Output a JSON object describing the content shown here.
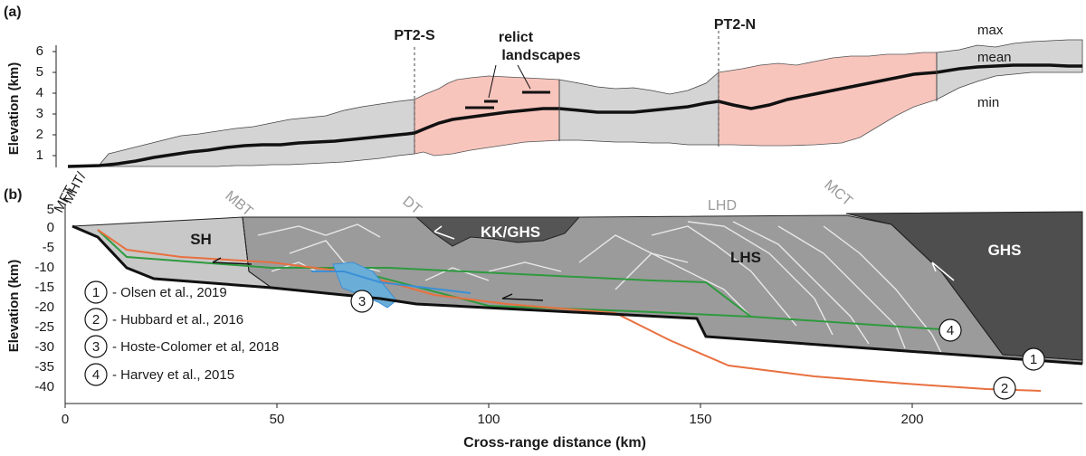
{
  "panel_a": {
    "label": "(a)",
    "ylabel": "Elevation (km)",
    "yticks": [
      "1",
      "2",
      "3",
      "4",
      "5",
      "6"
    ],
    "profile_labels": [
      "PT2-S",
      "PT2-N"
    ],
    "relict_label_1": "relict",
    "relict_label_2": "landscapes",
    "legend": [
      "max",
      "mean",
      "min"
    ]
  },
  "panel_b": {
    "label": "(b)",
    "ylabel": "Elevation (km)",
    "xlabel": "Cross-range distance (km)",
    "yticks": [
      "5",
      "0",
      "-5",
      "-10",
      "-15",
      "-20",
      "-25",
      "-30",
      "-35",
      "-40"
    ],
    "xticks": [
      "0",
      "50",
      "100",
      "150",
      "200"
    ],
    "fault_labels": [
      "MHT/",
      "MFT",
      "MBT",
      "DT",
      "LHD",
      "MCT"
    ],
    "unit_labels": [
      "SH",
      "KK/GHS",
      "LHS",
      "GHS"
    ],
    "model_markers": [
      "1",
      "2",
      "3",
      "4"
    ],
    "references": [
      {
        "num": "1",
        "text": "- Olsen et al., 2019"
      },
      {
        "num": "2",
        "text": "- Hubbard et al., 2016"
      },
      {
        "num": "3",
        "text": "- Hoste-Colomer et al, 2018"
      },
      {
        "num": "4",
        "text": "- Harvey et al., 2015"
      }
    ]
  },
  "colors": {
    "relict_fill": "#f8c5bd",
    "swath_fill": "#d4d4d4",
    "sh_fill": "#c8c8c8",
    "lhs_fill": "#9b9b9b",
    "ghs_fill": "#4e4e4e",
    "olsen": "#1a1a1a",
    "hubbard": "#e8703f",
    "hoste": "#3b8fd6",
    "harvey": "#2e9a3e"
  },
  "chart_data": [
    {
      "type": "area",
      "panel": "(a)",
      "xlabel": "",
      "ylabel": "Elevation (km)",
      "ylim": [
        0,
        6.5
      ],
      "xlim": [
        0,
        240
      ],
      "series": [
        {
          "name": "max",
          "x": [
            0,
            10,
            20,
            30,
            40,
            50,
            60,
            70,
            80,
            83,
            90,
            100,
            110,
            117,
            125,
            140,
            150,
            155,
            165,
            180,
            195,
            205,
            215,
            225,
            240
          ],
          "values": [
            0.3,
            0.6,
            1.4,
            1.8,
            2.2,
            2.7,
            3.1,
            3.4,
            3.6,
            3.9,
            4.6,
            5.2,
            5.0,
            4.2,
            3.9,
            4.0,
            4.5,
            5.5,
            5.7,
            6.0,
            6.3,
            6.4,
            6.6,
            6.7,
            6.7
          ]
        },
        {
          "name": "mean",
          "x": [
            0,
            10,
            20,
            30,
            40,
            50,
            60,
            70,
            80,
            83,
            90,
            100,
            110,
            117,
            125,
            140,
            150,
            155,
            165,
            180,
            195,
            205,
            215,
            225,
            240
          ],
          "values": [
            0.2,
            0.3,
            0.7,
            1.0,
            1.3,
            1.5,
            1.6,
            1.7,
            2.0,
            2.3,
            2.6,
            3.0,
            3.1,
            3.3,
            3.0,
            3.1,
            3.4,
            3.3,
            3.6,
            4.3,
            4.9,
            5.1,
            5.3,
            5.4,
            5.3
          ]
        },
        {
          "name": "min",
          "x": [
            0,
            10,
            20,
            30,
            40,
            50,
            60,
            70,
            80,
            83,
            90,
            100,
            110,
            117,
            125,
            140,
            150,
            155,
            165,
            180,
            195,
            205,
            215,
            225,
            240
          ],
          "values": [
            0.2,
            0.2,
            0.3,
            0.4,
            0.5,
            0.6,
            0.7,
            0.8,
            0.9,
            1.0,
            1.2,
            1.5,
            1.7,
            2.0,
            2.0,
            2.1,
            2.2,
            1.0,
            1.2,
            1.8,
            3.0,
            3.8,
            4.4,
            4.8,
            5.0
          ]
        }
      ]
    },
    {
      "type": "line",
      "panel": "(b)",
      "xlabel": "Cross-range distance (km)",
      "ylabel": "Elevation (km)",
      "xlim": [
        0,
        240
      ],
      "ylim": [
        -42,
        7
      ],
      "series": [
        {
          "name": "Olsen et al., 2019",
          "x": [
            7,
            20,
            80,
            150,
            240
          ],
          "values": [
            0,
            -8,
            -18,
            -27,
            -33
          ]
        },
        {
          "name": "Hubbard et al., 2016",
          "x": [
            7,
            20,
            60,
            130,
            155,
            200,
            227
          ],
          "values": [
            0,
            -6,
            -8,
            -18,
            -33,
            -36,
            -38
          ]
        },
        {
          "name": "Hoste-Colomer et al, 2018",
          "x": [
            60,
            70,
            80,
            100
          ],
          "values": [
            -11,
            -12,
            -15,
            -16
          ]
        },
        {
          "name": "Harvey et al., 2015",
          "x": [
            7,
            20,
            60,
            80,
            100,
            140,
            170,
            210
          ],
          "values": [
            0,
            -7,
            -9,
            -11,
            -16,
            -17,
            -20,
            -22
          ]
        }
      ]
    }
  ]
}
